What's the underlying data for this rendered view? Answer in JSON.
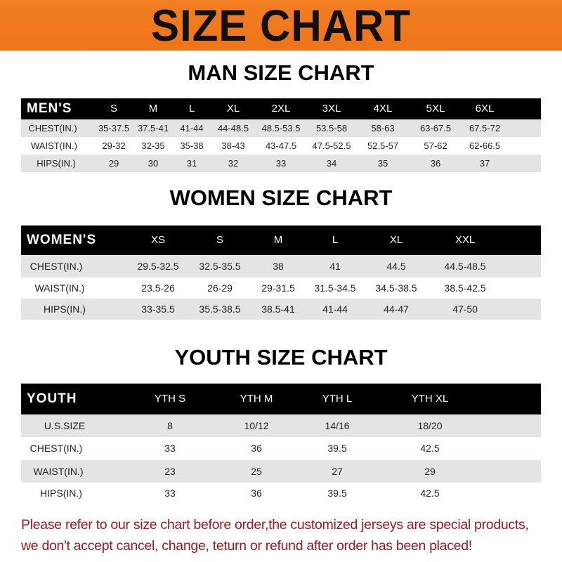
{
  "banner": {
    "title": "SIZE CHART",
    "color": "#f07a1c"
  },
  "men": {
    "title": "MAN SIZE CHART",
    "header": [
      "MEN'S",
      "S",
      "M",
      "L",
      "XL",
      "2XL",
      "3XL",
      "4XL",
      "5XL",
      "6XL"
    ],
    "rows": [
      [
        "CHEST(IN.)",
        "35-37.5",
        "37.5-41",
        "41-44",
        "44-48.5",
        "48.5-53.5",
        "53.5-58",
        "58-63",
        "63-67.5",
        "67.5-72"
      ],
      [
        "WAIST(IN.)",
        "29-32",
        "32-35",
        "35-38",
        "38-43",
        "43-47.5",
        "47.5-52.5",
        "52.5-57",
        "57-62",
        "62-66.5"
      ],
      [
        "HIPS(IN.)",
        "29",
        "30",
        "31",
        "32",
        "33",
        "34",
        "35",
        "36",
        "37"
      ]
    ]
  },
  "women": {
    "title": "WOMEN SIZE CHART",
    "header": [
      "WOMEN'S",
      "XS",
      "S",
      "M",
      "L",
      "XL",
      "XXL"
    ],
    "rows": [
      [
        "CHEST(IN.)",
        "29.5-32.5",
        "32.5-35.5",
        "38",
        "41",
        "44.5",
        "44.5-48.5"
      ],
      [
        "WAIST(IN.)",
        "23.5-26",
        "26-29",
        "29-31.5",
        "31.5-34.5",
        "34.5-38.5",
        "38.5-42.5"
      ],
      [
        "HIPS(IN.)",
        "33-35.5",
        "35.5-38.5",
        "38.5-41",
        "41-44",
        "44-47",
        "47-50"
      ]
    ]
  },
  "youth": {
    "title": "YOUTH SIZE CHART",
    "header": [
      "YOUTH",
      "YTH S",
      "YTH M",
      "YTH L",
      "YTH XL"
    ],
    "rows": [
      [
        "U.S.SIZE",
        "8",
        "10/12",
        "14/16",
        "18/20"
      ],
      [
        "CHEST(IN.)",
        "33",
        "36",
        "39.5",
        "42.5"
      ],
      [
        "WAIST(IN.)",
        "23",
        "25",
        "27",
        "29"
      ],
      [
        "HIPS(IN.)",
        "33",
        "36",
        "39.5",
        "42.5"
      ]
    ]
  },
  "note": {
    "line1": "Please refer to our size chart before order,the customized jerseys are special products,",
    "line2": "we don't accept cancel, change, teturn or refund after order has been placed!",
    "color": "#a3161b"
  }
}
